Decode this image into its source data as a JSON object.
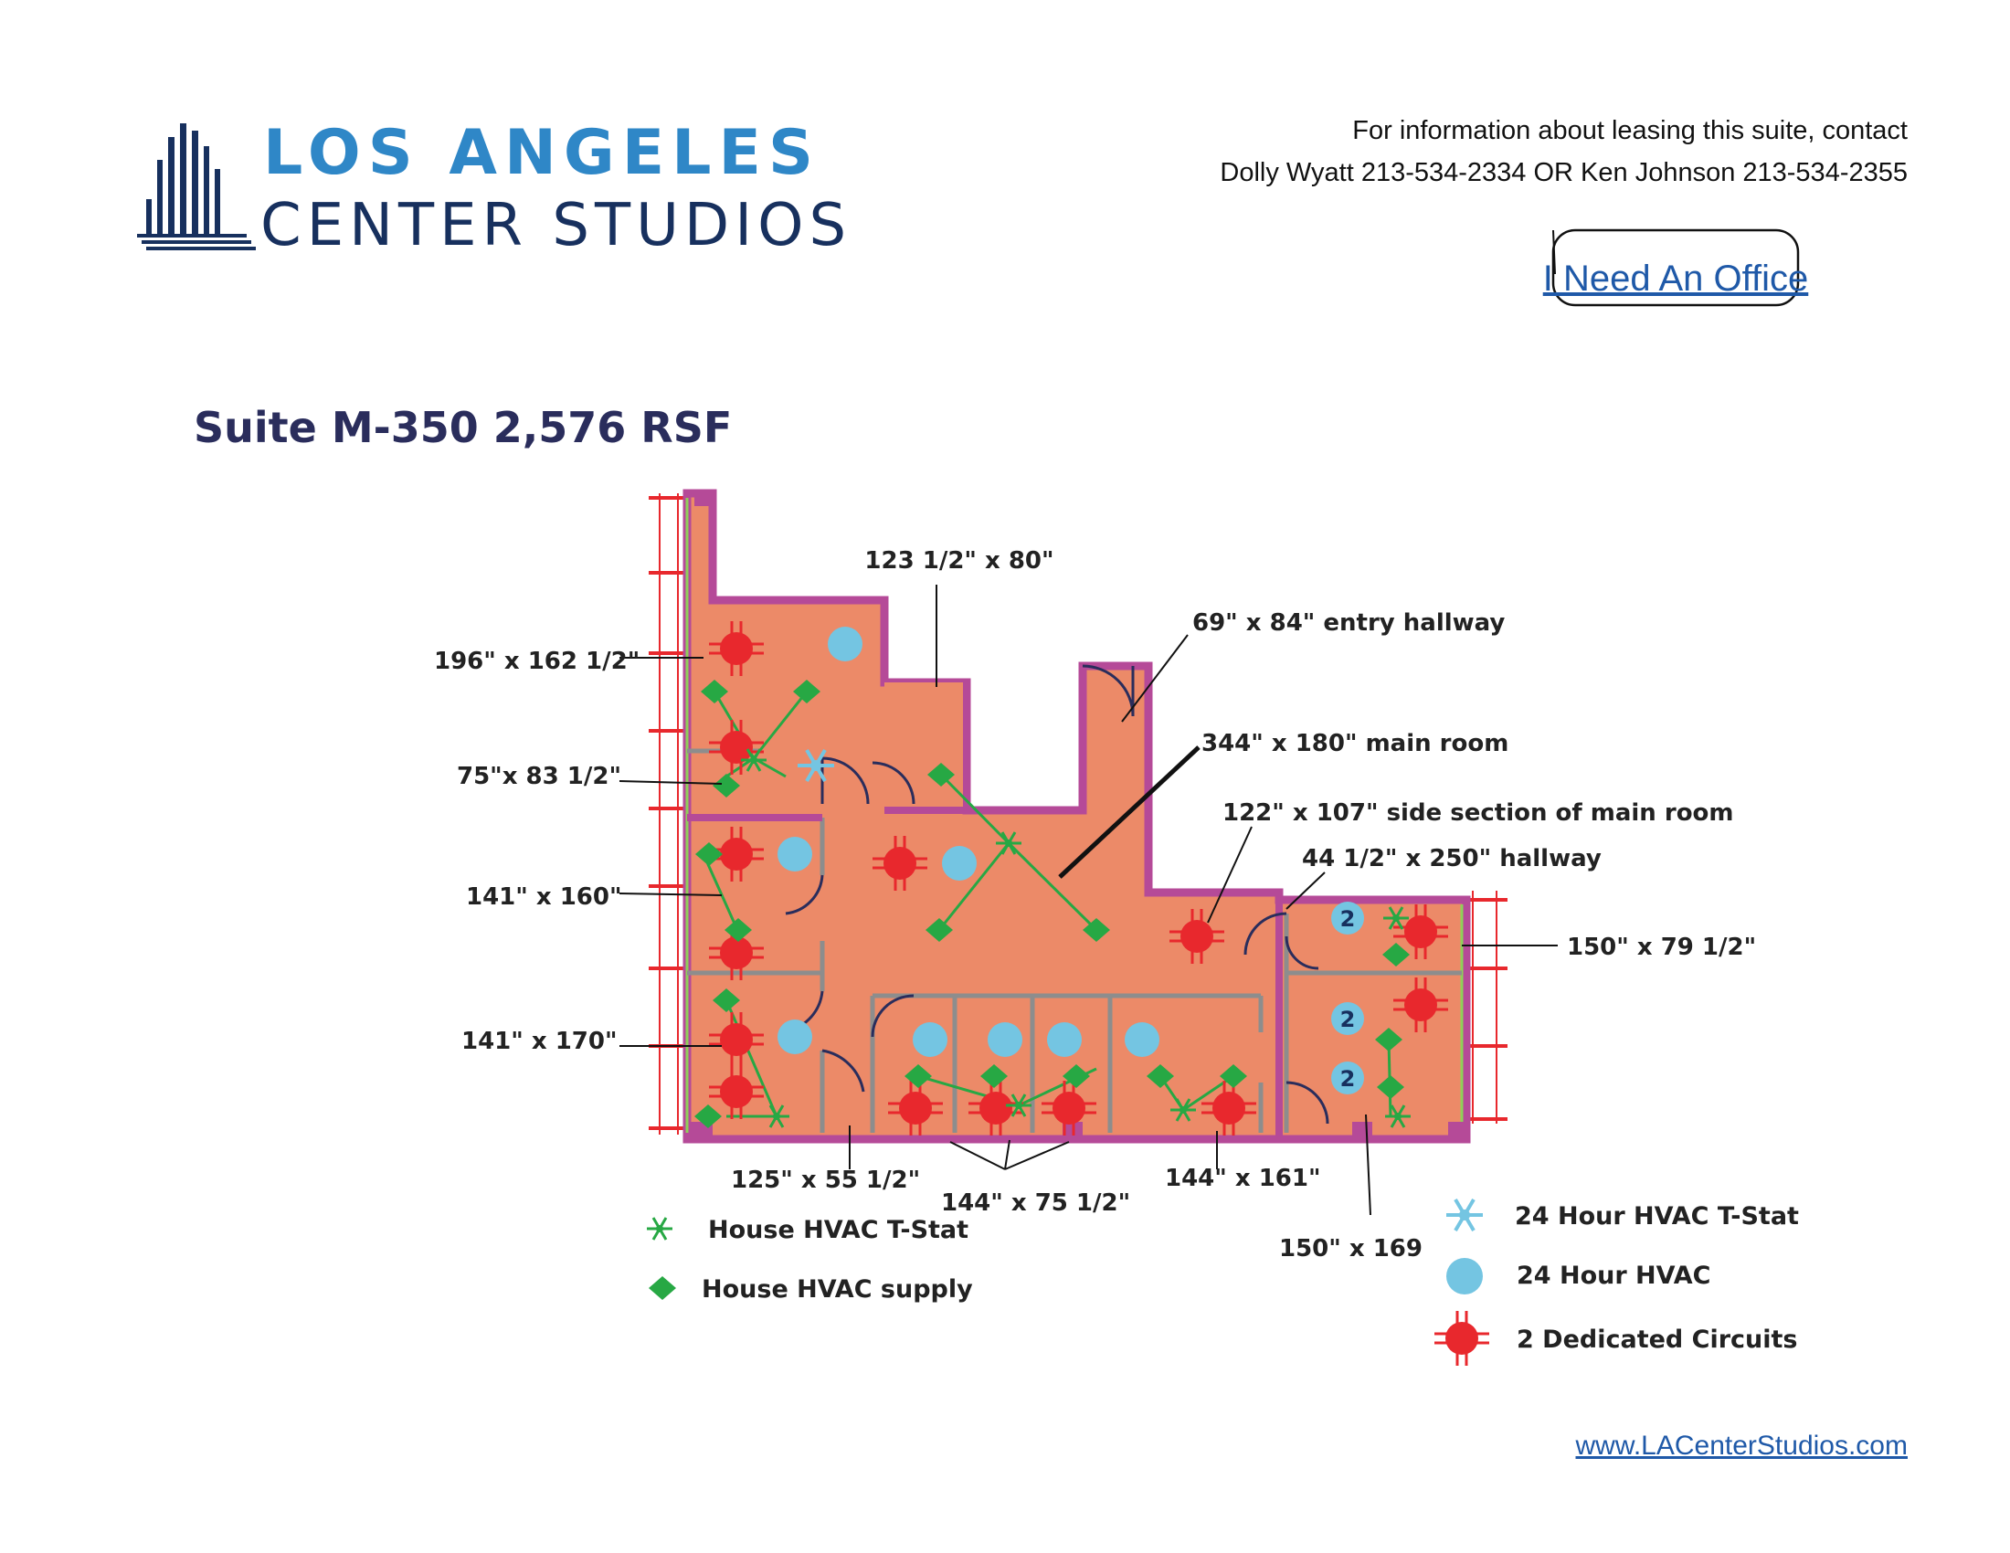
{
  "brand": {
    "line1": "LOS ANGELES",
    "line2": "CENTER STUDIOS"
  },
  "contact": {
    "line1": "For information about leasing this suite, contact",
    "line2": "Dolly Wyatt 213-534-2334  OR   Ken Johnson 213-534-2355"
  },
  "office_button": "I Need An Office",
  "suite_title": "Suite M-350  2,576 RSF",
  "dimensions": {
    "d1": "123 1/2\" x 80\"",
    "d2": "69\" x 84\" entry hallway",
    "d3": "196\" x 162 1/2\"",
    "d4": "344\" x 180\" main room",
    "d5": "75\"x 83 1/2\"",
    "d6": "122\" x 107\" side section of main room",
    "d7": "44 1/2\" x 250\" hallway",
    "d8": "141\" x 160\"",
    "d9": "150\" x 79 1/2\"",
    "d10": "141\" x 170\"",
    "d11": "125\" x 55 1/2\"",
    "d12": "144\" x 75 1/2\"",
    "d13": "144\" x 161\"",
    "d14": "150\" x 169"
  },
  "badge_label": "2",
  "legend": {
    "house_tstat": "House HVAC T-Stat",
    "house_supply": "House HVAC supply",
    "hour24_tstat": "24 Hour HVAC T-Stat",
    "hour24_hvac": "24 Hour HVAC",
    "circuits": "2 Dedicated Circuits"
  },
  "website": "www.LACenterStudios.com",
  "colors": {
    "floor": "#ec8a68",
    "wall": "#b54a98",
    "circuit": "#e8282d",
    "hvac24": "#74c5e2",
    "house": "#27a844",
    "brand_blue": "#2f87c7",
    "brand_navy": "#17305e",
    "link": "#1f59a8"
  },
  "icons": {
    "circuit": "red-circle-cross-icon",
    "hvac24": "blue-circle-icon",
    "hvac24_tstat": "snowflake-icon",
    "house_supply": "green-diamond-icon",
    "house_tstat": "green-snowflake-icon"
  }
}
